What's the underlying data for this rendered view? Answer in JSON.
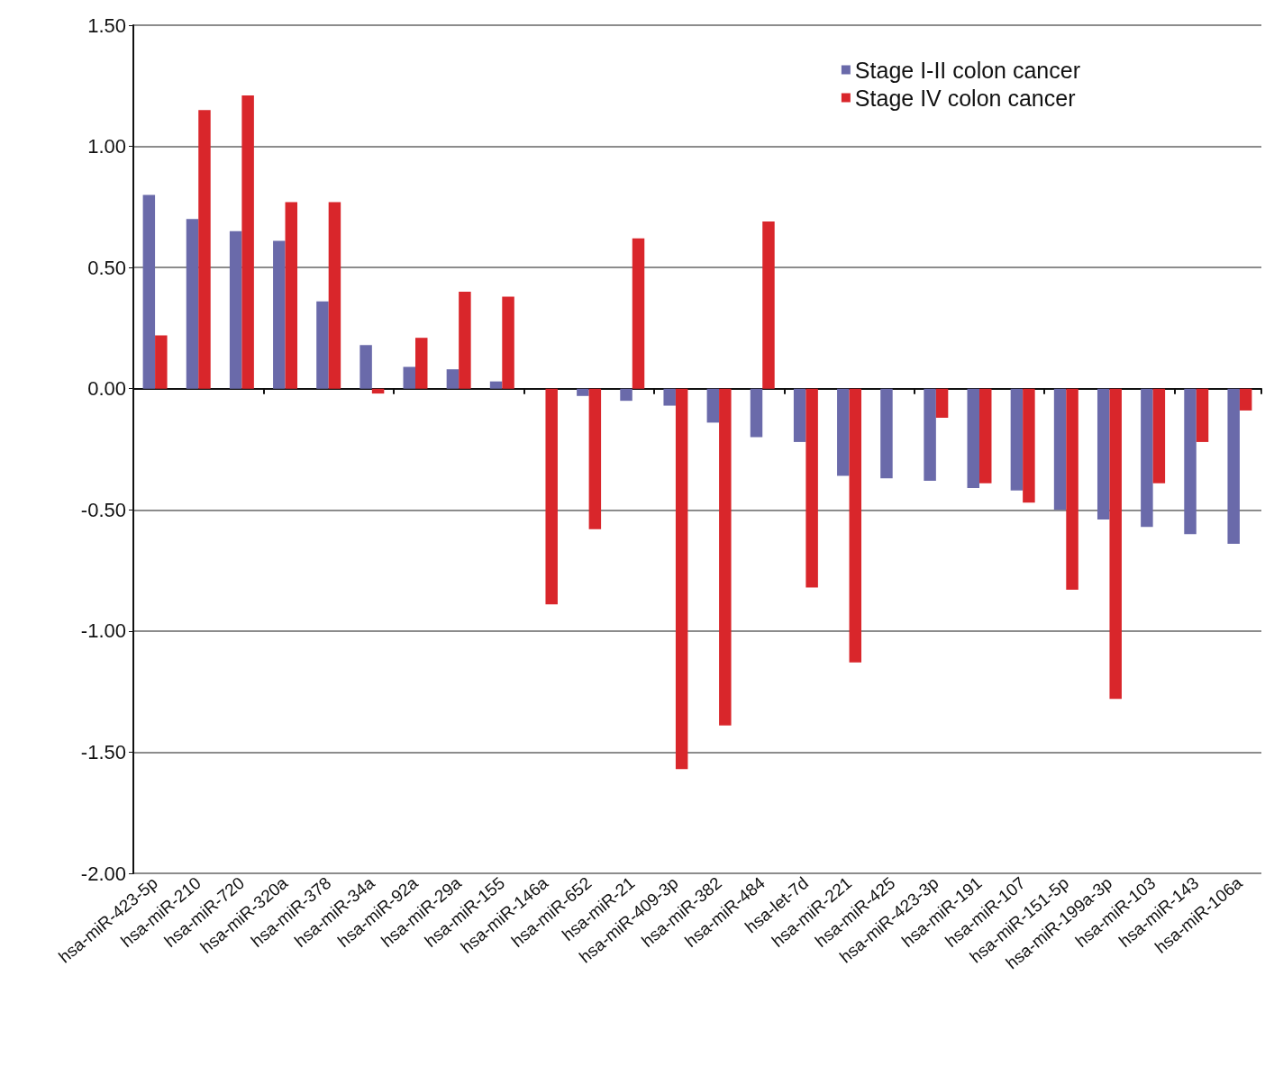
{
  "chart_data": {
    "type": "bar",
    "categories": [
      "hsa-miR-423-5p",
      "hsa-miR-210",
      "hsa-miR-720",
      "hsa-miR-320a",
      "hsa-miR-378",
      "hsa-miR-34a",
      "hsa-miR-92a",
      "hsa-miR-29a",
      "hsa-miR-155",
      "hsa-miR-146a",
      "hsa-miR-652",
      "hsa-miR-21",
      "hsa-miR-409-3p",
      "hsa-miR-382",
      "hsa-miR-484",
      "hsa-let-7d",
      "hsa-miR-221",
      "hsa-miR-425",
      "hsa-miR-423-3p",
      "hsa-miR-191",
      "hsa-miR-107",
      "hsa-miR-151-5p",
      "hsa-miR-199a-3p",
      "hsa-miR-103",
      "hsa-miR-143",
      "hsa-miR-106a"
    ],
    "series": [
      {
        "name": "Stage I-II colon cancer",
        "color": "#6a6aaa",
        "values": [
          0.8,
          0.7,
          0.65,
          0.61,
          0.36,
          0.18,
          0.09,
          0.08,
          0.03,
          null,
          -0.03,
          -0.05,
          -0.07,
          -0.14,
          -0.2,
          -0.22,
          -0.36,
          -0.37,
          -0.38,
          -0.41,
          -0.42,
          -0.5,
          -0.54,
          -0.57,
          -0.6,
          -0.64
        ]
      },
      {
        "name": "Stage IV colon cancer",
        "color": "#d9262b",
        "values": [
          0.22,
          1.15,
          1.21,
          0.77,
          0.77,
          -0.02,
          0.21,
          0.4,
          0.38,
          -0.89,
          -0.58,
          0.62,
          -1.57,
          -1.39,
          0.69,
          -0.82,
          -1.13,
          null,
          -0.12,
          -0.39,
          -0.47,
          -0.83,
          -1.28,
          -0.39,
          -0.22,
          -0.09
        ]
      }
    ],
    "ylim": [
      -2,
      1.5
    ],
    "yticks": [
      {
        "value": -2,
        "label": "-2.00"
      },
      {
        "value": -1.5,
        "label": "-1.50"
      },
      {
        "value": -1,
        "label": "-1.00"
      },
      {
        "value": -0.5,
        "label": "-0.50"
      },
      {
        "value": 0,
        "label": "0.00"
      },
      {
        "value": 0.5,
        "label": "0.50"
      },
      {
        "value": 1,
        "label": "1.00"
      },
      {
        "value": 1.5,
        "label": "1.50"
      }
    ],
    "grid": "y",
    "legend": "top right"
  }
}
